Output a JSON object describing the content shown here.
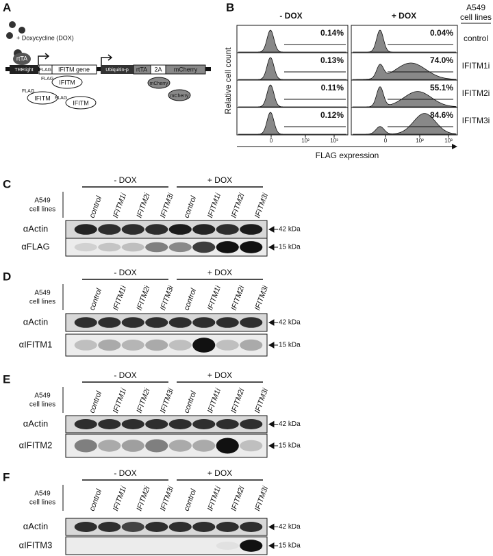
{
  "panel_a": {
    "label": "A",
    "dox_label": "+ Doxycycline (DOX)",
    "rtta_bound": "rtTA",
    "promoter": "TREtight",
    "flag": "FLAG",
    "gene": "IFITM gene",
    "ubiquitin": "Ubiquitin-p",
    "rtta": "rtTA",
    "p2a": "2A",
    "mcherry": "mCherry",
    "products": [
      {
        "tag": "FLAG",
        "protein": "IFITM"
      },
      {
        "tag": "FLAG",
        "protein": "IFITM"
      },
      {
        "tag": "FLAG",
        "protein": "IFITM"
      }
    ],
    "mcherry_products": [
      "mCherry",
      "mCherry"
    ]
  },
  "panel_b": {
    "label": "B",
    "columns": [
      "- DOX",
      "+ DOX"
    ],
    "cell_lines_header": [
      "A549",
      "cell lines"
    ],
    "rows": [
      {
        "line": "control",
        "minus": "0.14%",
        "plus": "0.04%"
      },
      {
        "line": "IFITM1i",
        "minus": "0.13%",
        "plus": "74.0%"
      },
      {
        "line": "IFITM2i",
        "minus": "0.11%",
        "plus": "55.1%"
      },
      {
        "line": "IFITM3i",
        "minus": "0.12%",
        "plus": "84.6%"
      }
    ],
    "y_label": "Relative cell count",
    "x_label": "FLAG expression",
    "x_ticks": [
      "0",
      "10²",
      "10³"
    ]
  },
  "blots": [
    {
      "label": "C",
      "groups": [
        "- DOX",
        "+ DOX"
      ],
      "cell_lines": [
        "A549",
        "cell lines"
      ],
      "lanes": [
        "control",
        "IFITM1i",
        "IFITM2i",
        "IFITM3i",
        "control",
        "IFITM1i",
        "IFITM2i",
        "IFITM3i"
      ],
      "rows": [
        {
          "antibody": "αActin",
          "marker": "42 kDa"
        },
        {
          "antibody": "αFLAG",
          "marker": "15 kDa"
        }
      ]
    },
    {
      "label": "D",
      "groups": [
        "- DOX",
        "+ DOX"
      ],
      "cell_lines": [
        "A549",
        "cell lines"
      ],
      "lanes": [
        "control",
        "IFITM1i",
        "IFITM2i",
        "IFITM3i",
        "control",
        "IFITM1i",
        "IFITM2i",
        "IFITM3i"
      ],
      "rows": [
        {
          "antibody": "αActin",
          "marker": "42 kDa"
        },
        {
          "antibody": "αIFITM1",
          "marker": "15 kDa"
        }
      ]
    },
    {
      "label": "E",
      "groups": [
        "- DOX",
        "+ DOX"
      ],
      "cell_lines": [
        "A549",
        "cell lines"
      ],
      "lanes": [
        "control",
        "IFITM1i",
        "IFITM2i",
        "IFITM3i",
        "control",
        "IFITM1i",
        "IFITM2i",
        "IFITM3i"
      ],
      "rows": [
        {
          "antibody": "αActin",
          "marker": "42 kDa"
        },
        {
          "antibody": "αIFITM2",
          "marker": "15 kDa"
        }
      ]
    },
    {
      "label": "F",
      "groups": [
        "- DOX",
        "+ DOX"
      ],
      "cell_lines": [
        "A549",
        "cell lines"
      ],
      "lanes": [
        "control",
        "IFITM1i",
        "IFITM2i",
        "IFITM3i",
        "control",
        "IFITM1i",
        "IFITM2i",
        "IFITM3i"
      ],
      "rows": [
        {
          "antibody": "αActin",
          "marker": "42 kDa"
        },
        {
          "antibody": "αIFITM3",
          "marker": "15 kDa"
        }
      ]
    }
  ]
}
